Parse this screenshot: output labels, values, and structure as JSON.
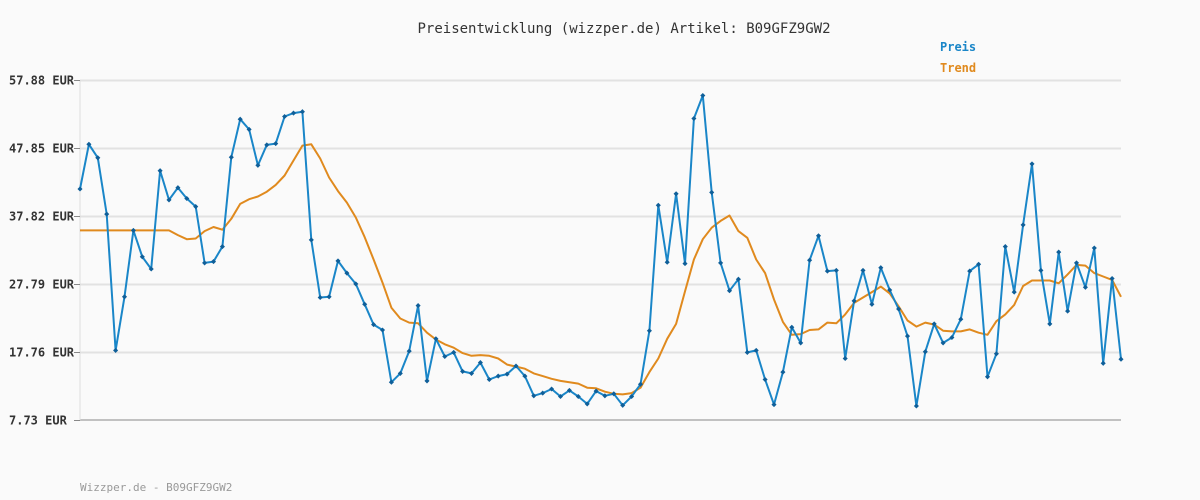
{
  "chart_data": {
    "type": "line",
    "title": "Preisentwicklung (wizzper.de) Artikel: B09GFZ9GW2",
    "ylim": [
      7.73,
      57.88
    ],
    "yticks": [
      "57.88 EUR",
      "47.85 EUR",
      "37.82 EUR",
      "27.79 EUR",
      "17.76 EUR",
      "7.73 EUR"
    ],
    "ytick_values": [
      57.88,
      47.85,
      37.82,
      27.79,
      17.76,
      7.73
    ],
    "grid": true,
    "legend_position": "top-right",
    "colors": {
      "Preis": "#1a86c8",
      "Trend": "#e08a1e"
    },
    "series": [
      {
        "name": "Preis",
        "values": [
          41.8,
          48.4,
          46.4,
          38.1,
          18.0,
          25.9,
          35.7,
          31.8,
          30.0,
          44.5,
          40.2,
          42.0,
          40.4,
          39.2,
          30.9,
          31.1,
          33.3,
          46.5,
          52.1,
          50.6,
          45.3,
          48.3,
          48.5,
          52.5,
          53.0,
          53.2,
          34.3,
          25.8,
          25.9,
          31.2,
          29.4,
          27.8,
          24.8,
          21.8,
          21.0,
          13.3,
          14.6,
          17.9,
          24.6,
          13.5,
          19.7,
          17.1,
          17.7,
          14.9,
          14.6,
          16.2,
          13.7,
          14.2,
          14.5,
          15.7,
          14.2,
          11.3,
          11.7,
          12.3,
          11.2,
          12.1,
          11.2,
          10.1,
          12.0,
          11.3,
          11.6,
          9.9,
          11.2,
          13.0,
          20.9,
          39.4,
          31.0,
          41.1,
          30.8,
          52.2,
          55.6,
          41.3,
          30.9,
          26.8,
          28.5,
          17.7,
          18.0,
          13.7,
          10.0,
          14.8,
          21.4,
          19.1,
          31.3,
          34.9,
          29.7,
          29.8,
          16.8,
          25.3,
          29.8,
          24.8,
          30.2,
          26.9,
          24.1,
          20.1,
          9.8,
          17.8,
          21.9,
          19.1,
          19.9,
          22.6,
          29.7,
          30.7,
          14.1,
          17.5,
          33.3,
          26.6,
          36.5,
          45.5,
          29.8,
          21.9,
          32.5,
          23.8,
          30.9,
          27.3,
          33.1,
          16.1,
          28.6,
          16.7
        ]
      },
      {
        "name": "Trend",
        "values": [
          35.7,
          35.7,
          35.7,
          35.7,
          35.7,
          35.7,
          35.7,
          35.7,
          35.7,
          35.7,
          35.7,
          35.0,
          34.4,
          34.5,
          35.6,
          36.2,
          35.8,
          37.4,
          39.6,
          40.3,
          40.7,
          41.4,
          42.4,
          43.8,
          46.0,
          48.2,
          48.4,
          46.3,
          43.5,
          41.5,
          39.8,
          37.6,
          34.7,
          31.4,
          28.0,
          24.3,
          22.7,
          22.1,
          22.0,
          20.6,
          19.6,
          18.9,
          18.4,
          17.6,
          17.2,
          17.3,
          17.2,
          16.8,
          15.9,
          15.6,
          15.3,
          14.6,
          14.2,
          13.8,
          13.5,
          13.3,
          13.1,
          12.5,
          12.4,
          11.9,
          11.6,
          11.5,
          11.7,
          12.5,
          14.8,
          16.8,
          19.7,
          21.9,
          26.7,
          31.4,
          34.4,
          36.1,
          37.1,
          37.9,
          35.6,
          34.6,
          31.4,
          29.4,
          25.5,
          22.2,
          20.3,
          20.4,
          21.0,
          21.1,
          22.1,
          22.0,
          23.3,
          25.0,
          25.8,
          26.6,
          27.4,
          26.4,
          24.5,
          22.4,
          21.5,
          22.1,
          21.8,
          20.9,
          20.8,
          20.8,
          21.1,
          20.6,
          20.3,
          22.3,
          23.3,
          24.7,
          27.5,
          28.3,
          28.3,
          28.3,
          27.9,
          29.2,
          30.6,
          30.5,
          29.4,
          28.9,
          28.4,
          25.9
        ]
      }
    ]
  },
  "footer": "Wizzper.de - B09GFZ9GW2"
}
